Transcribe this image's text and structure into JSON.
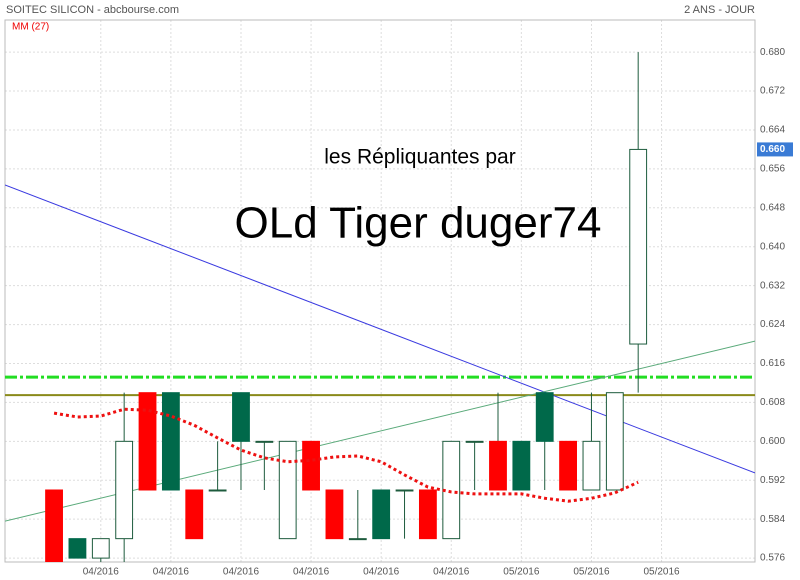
{
  "chart_data": {
    "type": "candlestick",
    "title": "SOITEC SILICON - abcbourse.com",
    "subtitle": "2 ANS - JOUR",
    "annotations": [
      "les Répliquantes par",
      "OLd Tiger duger74"
    ],
    "x": [
      0,
      1,
      2,
      3,
      4,
      5,
      6,
      7,
      8,
      9,
      10,
      11,
      12,
      13,
      14,
      15,
      16,
      17,
      18,
      19,
      20,
      21,
      22,
      23,
      24,
      25
    ],
    "open": [
      0.59,
      0.576,
      0.576,
      0.58,
      0.61,
      0.59,
      0.59,
      0.59,
      0.6,
      0.6,
      0.58,
      0.6,
      0.59,
      0.58,
      0.58,
      0.59,
      0.59,
      0.58,
      0.6,
      0.6,
      0.59,
      0.6,
      0.6,
      0.59,
      0.59,
      0.62
    ],
    "high": [
      0.59,
      0.58,
      0.58,
      0.61,
      0.61,
      0.61,
      0.59,
      0.6,
      0.61,
      0.6,
      0.6,
      0.6,
      0.59,
      0.59,
      0.59,
      0.59,
      0.59,
      0.6,
      0.6,
      0.61,
      0.6,
      0.61,
      0.6,
      0.61,
      0.61,
      0.68
    ],
    "low": [
      0.575,
      0.576,
      0.575,
      0.575,
      0.59,
      0.59,
      0.58,
      0.59,
      0.59,
      0.59,
      0.58,
      0.59,
      0.58,
      0.58,
      0.58,
      0.58,
      0.58,
      0.58,
      0.59,
      0.59,
      0.59,
      0.59,
      0.59,
      0.59,
      0.59,
      0.61
    ],
    "close": [
      0.575,
      0.58,
      0.58,
      0.6,
      0.59,
      0.61,
      0.58,
      0.59,
      0.61,
      0.6,
      0.6,
      0.59,
      0.58,
      0.58,
      0.59,
      0.59,
      0.58,
      0.6,
      0.6,
      0.59,
      0.6,
      0.61,
      0.59,
      0.6,
      0.61,
      0.66
    ],
    "colors": [
      "#ff0000",
      "#00694a",
      "#ffffff",
      "#ffffff",
      "#ff0000",
      "#00694a",
      "#ff0000",
      "#ffffff",
      "#00694a",
      "#ffffff",
      "#ffffff",
      "#ff0000",
      "#ff0000",
      "#ffffff",
      "#00694a",
      "#ffffff",
      "#ff0000",
      "#ffffff",
      "#ffffff",
      "#ff0000",
      "#00694a",
      "#00694a",
      "#ff0000",
      "#ffffff",
      "#ffffff",
      "#ffffff"
    ],
    "ma": {
      "name": "MM (27)",
      "color": "#ee1111",
      "values": [
        0.6058,
        0.605,
        0.6052,
        0.6066,
        0.6064,
        0.6052,
        0.6033,
        0.6007,
        0.5982,
        0.5966,
        0.5958,
        0.5961,
        0.5968,
        0.597,
        0.5958,
        0.5931,
        0.5906,
        0.5896,
        0.5892,
        0.5892,
        0.5892,
        0.5883,
        0.5877,
        0.5883,
        0.5894,
        0.5916
      ]
    },
    "lines": [
      {
        "color": "#3a3ae0",
        "x": [
          -2.1,
          30
        ],
        "values": [
          0.6527,
          0.5935
        ]
      },
      {
        "color": "#5aaa7a",
        "x": [
          -2.1,
          30
        ],
        "values": [
          0.5836,
          0.6206
        ]
      }
    ],
    "hlines": [
      {
        "value": 0.6132,
        "color": "#22dd22",
        "style": "dashdot"
      },
      {
        "value": 0.6095,
        "color": "#8a8a1a",
        "style": "solid"
      }
    ],
    "last_price": {
      "value": 0.66,
      "label": "0.660"
    },
    "xlim": [
      -2.1,
      30
    ],
    "xticks": [
      {
        "value": 2,
        "label": "04/2016"
      },
      {
        "value": 5,
        "label": "04/2016"
      },
      {
        "value": 8,
        "label": "04/2016"
      },
      {
        "value": 11,
        "label": "04/2016"
      },
      {
        "value": 14,
        "label": "04/2016"
      },
      {
        "value": 17,
        "label": "04/2016"
      },
      {
        "value": 20,
        "label": "05/2016"
      },
      {
        "value": 23,
        "label": "05/2016"
      },
      {
        "value": 26,
        "label": "05/2016"
      }
    ],
    "ylim": [
      0.5752,
      0.6866
    ],
    "yticks": [
      0.576,
      0.584,
      0.592,
      {
        "value": 0.6,
        "label": "0.600"
      },
      0.608,
      0.616,
      0.624,
      0.632,
      {
        "value": 0.64,
        "label": "0.640"
      },
      0.648,
      0.656,
      0.664,
      0.672,
      {
        "value": 0.68,
        "label": "0.680"
      }
    ],
    "grid": true
  }
}
